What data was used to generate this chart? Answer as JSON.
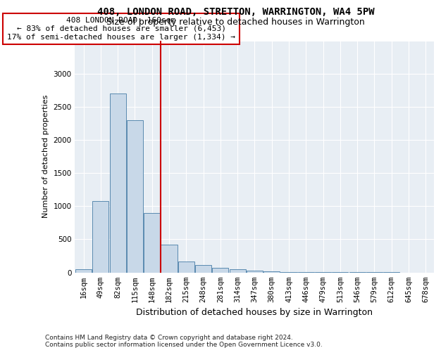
{
  "title": "408, LONDON ROAD, STRETTON, WARRINGTON, WA4 5PW",
  "subtitle": "Size of property relative to detached houses in Warrington",
  "xlabel": "Distribution of detached houses by size in Warrington",
  "ylabel": "Number of detached properties",
  "footnote1": "Contains HM Land Registry data © Crown copyright and database right 2024.",
  "footnote2": "Contains public sector information licensed under the Open Government Licence v3.0.",
  "annotation_line1": "408 LONDON ROAD: 160sqm",
  "annotation_line2": "← 83% of detached houses are smaller (6,453)",
  "annotation_line3": "17% of semi-detached houses are larger (1,334) →",
  "bar_labels": [
    "16sqm",
    "49sqm",
    "82sqm",
    "115sqm",
    "148sqm",
    "182sqm",
    "215sqm",
    "248sqm",
    "281sqm",
    "314sqm",
    "347sqm",
    "380sqm",
    "413sqm",
    "446sqm",
    "479sqm",
    "513sqm",
    "546sqm",
    "579sqm",
    "612sqm",
    "645sqm",
    "678sqm"
  ],
  "bar_values": [
    50,
    1080,
    2700,
    2300,
    900,
    420,
    165,
    110,
    65,
    50,
    30,
    20,
    10,
    5,
    3,
    2,
    1,
    1,
    1,
    0,
    0
  ],
  "bar_color": "#c8d8e8",
  "bar_edge_color": "#5a8ab0",
  "vline_color": "#cc0000",
  "background_color": "#e8eef4",
  "ylim": [
    0,
    3500
  ],
  "yticks": [
    0,
    500,
    1000,
    1500,
    2000,
    2500,
    3000,
    3500
  ],
  "title_fontsize": 10,
  "subtitle_fontsize": 9,
  "ylabel_fontsize": 8,
  "xlabel_fontsize": 9,
  "tick_fontsize": 7.5,
  "footnote_fontsize": 6.5
}
